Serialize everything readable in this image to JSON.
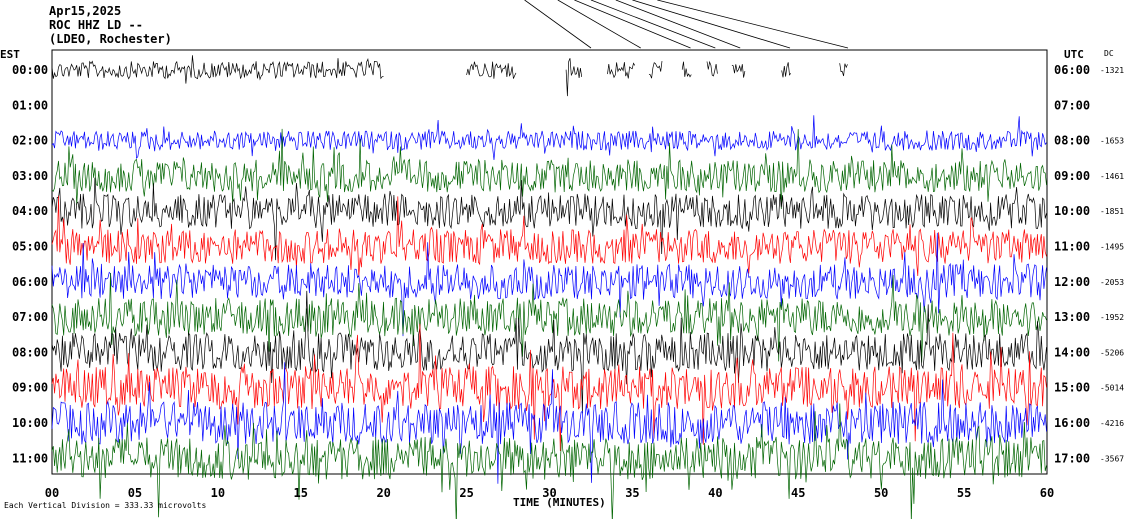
{
  "header": {
    "date": "Apr15,2025",
    "station": "ROC HHZ LD --",
    "network": "(LDEO, Rochester)"
  },
  "chart_data": {
    "type": "line",
    "title": "",
    "xlabel": "TIME (MINUTES)",
    "x_ticks": [
      "00",
      "05",
      "10",
      "15",
      "20",
      "25",
      "30",
      "35",
      "40",
      "45",
      "50",
      "55",
      "60"
    ],
    "xlim": [
      0,
      60
    ],
    "left_axis_label": "EST",
    "right_axis_label": "UTC",
    "dc_label": "DC",
    "scale_note": "Each Vertical Division = 333.33 microvolts",
    "trace_colors": [
      "#000000",
      "#ff0000",
      "#0000ff",
      "#006400"
    ],
    "rows": [
      {
        "est": "00:00",
        "utc": "06:00",
        "dc": "-1321",
        "color": "#000000",
        "amplitude": 0.45,
        "segments": [
          [
            0,
            20
          ],
          [
            25,
            28
          ],
          [
            31,
            32
          ],
          [
            33.5,
            35.2
          ],
          [
            36,
            36.8
          ],
          [
            38,
            38.6
          ],
          [
            39.5,
            40.2
          ],
          [
            41,
            41.8
          ],
          [
            44,
            44.6
          ],
          [
            47.5,
            48
          ]
        ]
      },
      {
        "est": "01:00",
        "utc": "07:00",
        "dc": "",
        "color": "#ff0000",
        "amplitude": 0,
        "segments": []
      },
      {
        "est": "02:00",
        "utc": "08:00",
        "dc": "-1653",
        "color": "#0000ff",
        "amplitude": 0.5,
        "segments": [
          [
            0,
            60
          ]
        ]
      },
      {
        "est": "03:00",
        "utc": "09:00",
        "dc": "-1461",
        "color": "#006400",
        "amplitude": 0.85,
        "segments": [
          [
            0,
            60
          ]
        ]
      },
      {
        "est": "04:00",
        "utc": "10:00",
        "dc": "-1851",
        "color": "#000000",
        "amplitude": 0.9,
        "segments": [
          [
            0,
            60
          ]
        ]
      },
      {
        "est": "05:00",
        "utc": "11:00",
        "dc": "-1495",
        "color": "#ff0000",
        "amplitude": 0.9,
        "segments": [
          [
            0,
            60
          ]
        ]
      },
      {
        "est": "06:00",
        "utc": "12:00",
        "dc": "-2053",
        "color": "#0000ff",
        "amplitude": 0.9,
        "segments": [
          [
            0,
            60
          ]
        ]
      },
      {
        "est": "07:00",
        "utc": "13:00",
        "dc": "-1952",
        "color": "#006400",
        "amplitude": 1.0,
        "segments": [
          [
            0,
            60
          ]
        ]
      },
      {
        "est": "08:00",
        "utc": "14:00",
        "dc": "-5206",
        "color": "#000000",
        "amplitude": 1.0,
        "segments": [
          [
            0,
            60
          ]
        ]
      },
      {
        "est": "09:00",
        "utc": "15:00",
        "dc": "-5014",
        "color": "#ff0000",
        "amplitude": 1.1,
        "segments": [
          [
            0,
            60
          ]
        ]
      },
      {
        "est": "10:00",
        "utc": "16:00",
        "dc": "-4216",
        "color": "#0000ff",
        "amplitude": 1.1,
        "segments": [
          [
            0,
            60
          ]
        ]
      },
      {
        "est": "11:00",
        "utc": "17:00",
        "dc": "-3567",
        "color": "#006400",
        "amplitude": 1.1,
        "segments": [
          [
            0,
            60
          ]
        ]
      }
    ]
  }
}
